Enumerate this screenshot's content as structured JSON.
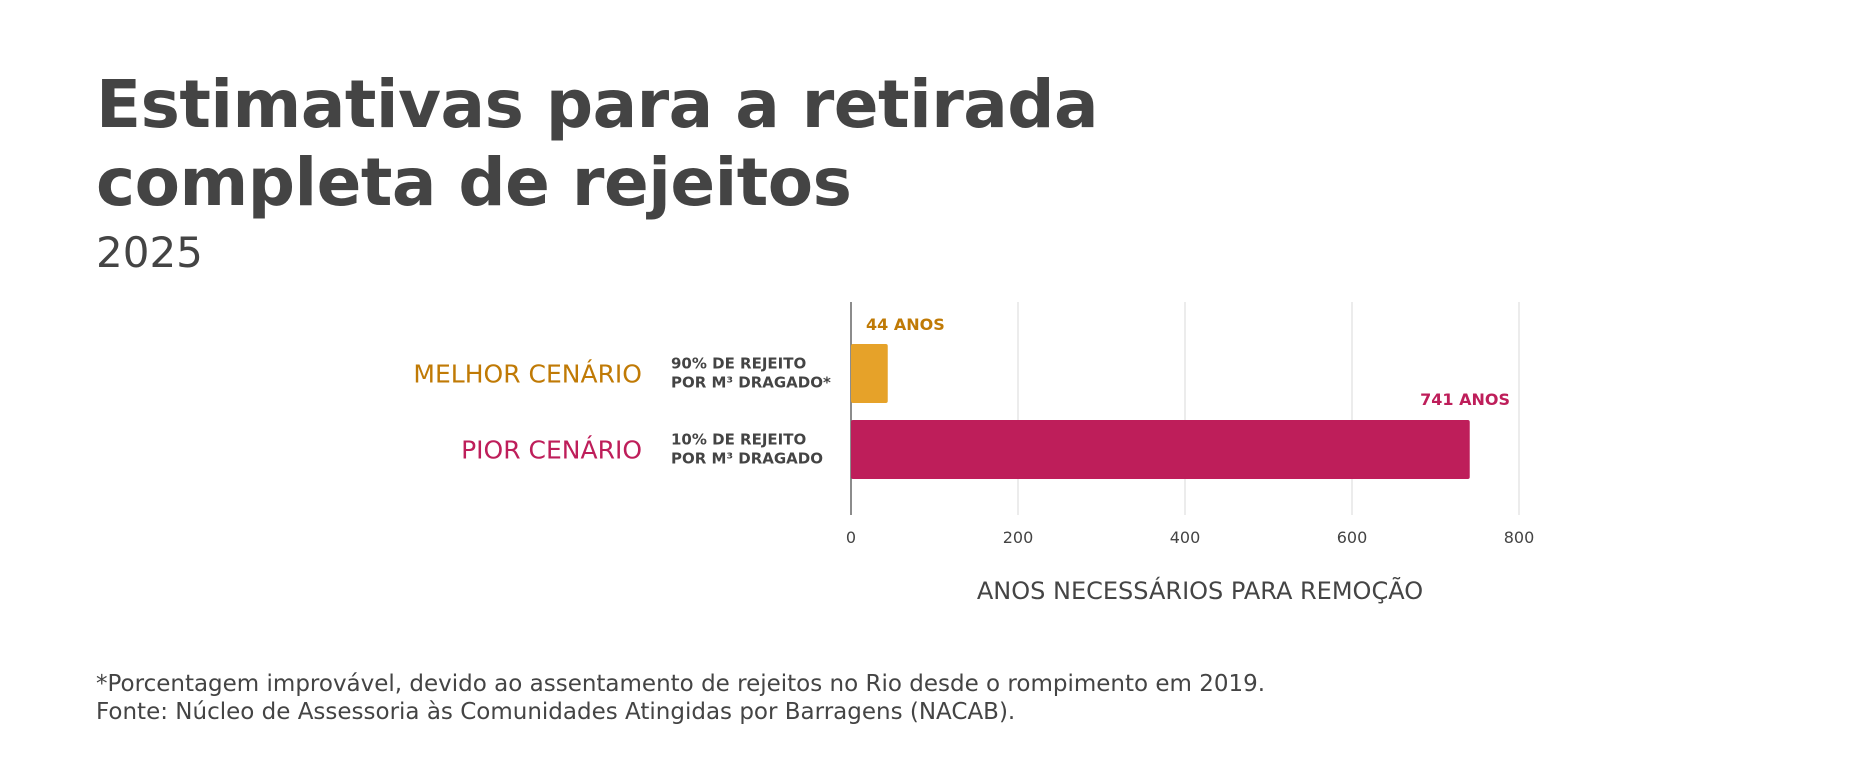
{
  "title": "Estimativas para a retirada completa de rejeitos",
  "subtitle": "2025",
  "chart_data": {
    "type": "bar",
    "orientation": "horizontal",
    "categories": [
      "MELHOR CENÁRIO",
      "PIOR CENÁRIO"
    ],
    "sublabels": [
      [
        "90% DE REJEITO",
        "POR M³ DRAGADO*"
      ],
      [
        "10% DE REJEITO",
        "POR M³ DRAGADO"
      ]
    ],
    "values": [
      44,
      741
    ],
    "data_labels": [
      "44 ANOS",
      "741 ANOS"
    ],
    "colors": [
      "#E6A229",
      "#BE1E5A"
    ],
    "label_colors": [
      "#C07A05",
      "#BE1E5A"
    ],
    "xlabel": "ANOS NECESSÁRIOS PARA REMOÇÃO",
    "xlim": [
      0,
      800
    ],
    "xticks": [
      "0",
      "200",
      "400",
      "600",
      "800"
    ],
    "grid": true
  },
  "footnote": "*Porcentagem improvável, devido ao assentamento de rejeitos no Rio desde o rompimento em 2019.",
  "source": "Fonte: Núcleo de Assessoria às Comunidades Atingidas por Barragens (NACAB)."
}
